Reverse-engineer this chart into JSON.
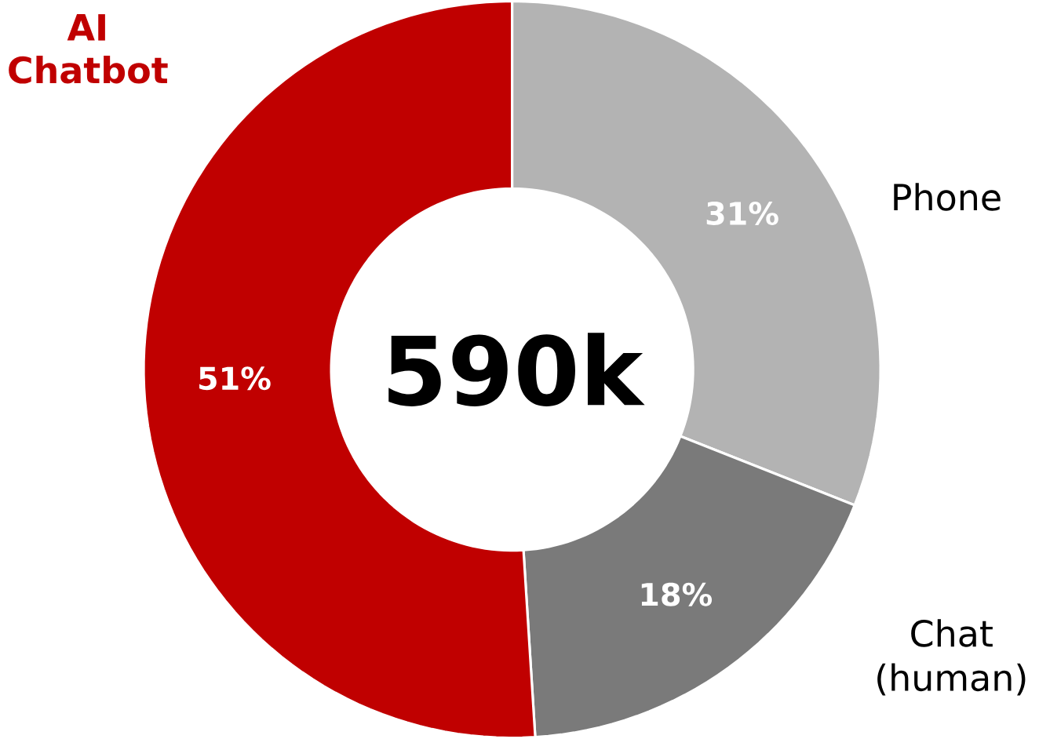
{
  "chart_data": {
    "type": "donut",
    "categories": [
      "Phone",
      "Chat (human)",
      "AI Chatbot"
    ],
    "values": [
      31,
      18,
      51
    ],
    "colors": [
      "#b3b3b3",
      "#7a7a7a",
      "#c00000"
    ],
    "value_labels": [
      "31%",
      "18%",
      "51%"
    ],
    "annotations": [
      "590k"
    ]
  }
}
